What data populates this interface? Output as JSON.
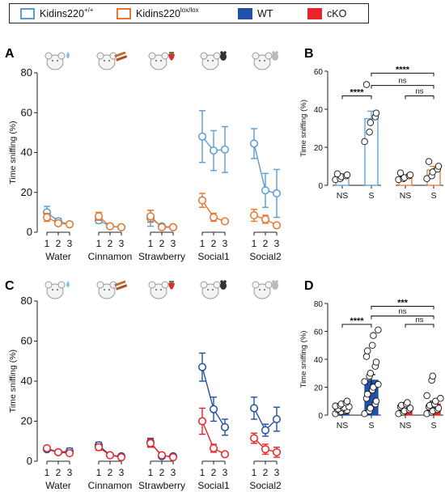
{
  "legend": {
    "items": [
      {
        "base": "Kidins220",
        "sup": "+/+",
        "style": "outline",
        "color": "#5b9bd5"
      },
      {
        "base": "Kidins220",
        "sup": "lox/lox",
        "style": "outline",
        "color": "#e8762d"
      },
      {
        "base": "WT",
        "sup": "",
        "style": "filled",
        "color": "#2150a8"
      },
      {
        "base": "cKO",
        "sup": "",
        "style": "filled",
        "color": "#e8252a"
      }
    ]
  },
  "colors": {
    "ctrl_AB": "#5b9bd5",
    "mut_AB": "#e8762d",
    "ctrl_CD": "#2150a8",
    "mut_CD": "#e8252a"
  },
  "chart_data": [
    {
      "panel": "A",
      "type": "line",
      "ylabel": "Time sniffing (%)",
      "ylim": [
        0,
        80
      ],
      "yticks": [
        0,
        20,
        40,
        60,
        80
      ],
      "groups": [
        "Water",
        "Cinnamon",
        "Strawberry",
        "Social1",
        "Social2"
      ],
      "trials": [
        "1",
        "2",
        "3"
      ],
      "icons": [
        "water-drop",
        "cinnamon",
        "strawberry",
        "mouse-dark",
        "mouse-light"
      ],
      "series": [
        {
          "color": "#5b9bd5",
          "values": [
            [
              10,
              5.5,
              4
            ],
            [
              6,
              3,
              2.5
            ],
            [
              7,
              3,
              2.5
            ],
            [
              48,
              41,
              41.5
            ],
            [
              44.5,
              21,
              19.5
            ]
          ],
          "err": [
            [
              3,
              1.5,
              1
            ],
            [
              1.5,
              0.5,
              0.5
            ],
            [
              4,
              1,
              1
            ],
            [
              13,
              10,
              11.5
            ],
            [
              7.5,
              8.5,
              12
            ]
          ]
        },
        {
          "color": "#e8762d",
          "values": [
            [
              7.5,
              4.5,
              4
            ],
            [
              8,
              3,
              2.5
            ],
            [
              8,
              2.5,
              2.5
            ],
            [
              16,
              7.5,
              5.5
            ],
            [
              8.5,
              6.5,
              3.5
            ]
          ],
          "err": [
            [
              2,
              1,
              1
            ],
            [
              2,
              1,
              0.5
            ],
            [
              3,
              1,
              1
            ],
            [
              3.5,
              2,
              1
            ],
            [
              3,
              2,
              1
            ]
          ]
        }
      ]
    },
    {
      "panel": "C",
      "type": "line",
      "ylabel": "Time sniffing (%)",
      "ylim": [
        0,
        80
      ],
      "yticks": [
        0,
        20,
        40,
        60,
        80
      ],
      "groups": [
        "Water",
        "Cinnamon",
        "Strawberry",
        "Social1",
        "Social2"
      ],
      "trials": [
        "1",
        "2",
        "3"
      ],
      "icons": [
        "water-drop",
        "cinnamon",
        "strawberry",
        "mouse-dark",
        "mouse-light"
      ],
      "series": [
        {
          "color": "#2150a8",
          "values": [
            [
              6,
              4.5,
              5
            ],
            [
              8,
              3,
              2.5
            ],
            [
              9.5,
              2.5,
              2.5
            ],
            [
              47,
              26,
              17
            ],
            [
              26.5,
              15.5,
              21
            ]
          ],
          "err": [
            [
              1,
              1,
              1.5
            ],
            [
              1.5,
              0.5,
              0.5
            ],
            [
              2,
              0.5,
              0.5
            ],
            [
              7,
              6,
              4
            ],
            [
              5.5,
              3,
              6
            ]
          ]
        },
        {
          "color": "#e8252a",
          "values": [
            [
              6.5,
              4.5,
              4
            ],
            [
              7,
              3,
              2
            ],
            [
              9,
              3,
              2
            ],
            [
              20,
              6.5,
              3.5
            ],
            [
              11.5,
              6,
              4.5
            ]
          ],
          "err": [
            [
              1,
              1,
              1
            ],
            [
              1.5,
              0.5,
              0.5
            ],
            [
              2,
              0.5,
              0.5
            ],
            [
              6.5,
              2,
              0.5
            ],
            [
              2.5,
              2.5,
              2.5
            ]
          ]
        }
      ]
    },
    {
      "panel": "B",
      "type": "bar",
      "ylabel": "Time sniffing (%)",
      "ylim": [
        0,
        60
      ],
      "yticks": [
        0,
        20,
        40,
        60
      ],
      "categories": [
        "NS",
        "S",
        "NS",
        "S"
      ],
      "style": "outline",
      "bar_colors": [
        "#5b9bd5",
        "#5b9bd5",
        "#e8762d",
        "#e8762d"
      ],
      "values": [
        4.5,
        35,
        4.5,
        8
      ],
      "err": [
        1,
        4,
        1,
        2
      ],
      "points": [
        [
          3,
          3.5,
          4.5,
          5,
          5.5,
          6
        ],
        [
          23,
          28,
          33,
          36,
          38,
          53
        ],
        [
          3,
          3.5,
          4,
          5,
          5.5,
          6.5
        ],
        [
          3.5,
          5,
          7,
          8.5,
          10,
          12.5
        ]
      ],
      "significance": [
        {
          "label": "****",
          "from": 0,
          "to": 1,
          "y": 47
        },
        {
          "label": "ns",
          "from": 1,
          "to": 3,
          "y": 52.5
        },
        {
          "label": "ns",
          "from": 2,
          "to": 3,
          "y": 47
        },
        {
          "label": "****",
          "from": 1,
          "to": 3,
          "y": 59
        }
      ]
    },
    {
      "panel": "D",
      "type": "bar",
      "ylabel": "Time sniffing (%)",
      "ylim": [
        0,
        80
      ],
      "yticks": [
        0,
        20,
        40,
        60,
        80
      ],
      "categories": [
        "NS",
        "S",
        "NS",
        "S"
      ],
      "style": "filled",
      "bar_colors": [
        "#2150a8",
        "#2150a8",
        "#e8252a",
        "#e8252a"
      ],
      "values": [
        4,
        25,
        3.5,
        8
      ],
      "err": [
        1,
        4,
        1,
        2
      ],
      "points": [
        [
          1,
          2,
          2.5,
          3,
          3.5,
          4,
          4.5,
          5,
          5.5,
          6,
          6.5,
          7,
          8,
          9,
          10
        ],
        [
          1,
          3,
          5,
          8,
          10,
          12,
          15,
          18,
          20,
          22,
          24,
          28,
          30,
          35,
          38,
          42,
          46,
          50,
          57,
          61
        ],
        [
          1,
          2,
          3,
          4,
          5,
          6,
          7,
          8,
          9
        ],
        [
          1,
          2,
          3,
          4,
          5,
          6,
          7,
          8,
          10,
          12,
          14,
          25,
          28
        ]
      ],
      "significance": [
        {
          "label": "****",
          "from": 0,
          "to": 1,
          "y": 65
        },
        {
          "label": "ns",
          "from": 1,
          "to": 3,
          "y": 71
        },
        {
          "label": "ns",
          "from": 2,
          "to": 3,
          "y": 65
        },
        {
          "label": "***",
          "from": 1,
          "to": 3,
          "y": 78
        }
      ]
    }
  ]
}
